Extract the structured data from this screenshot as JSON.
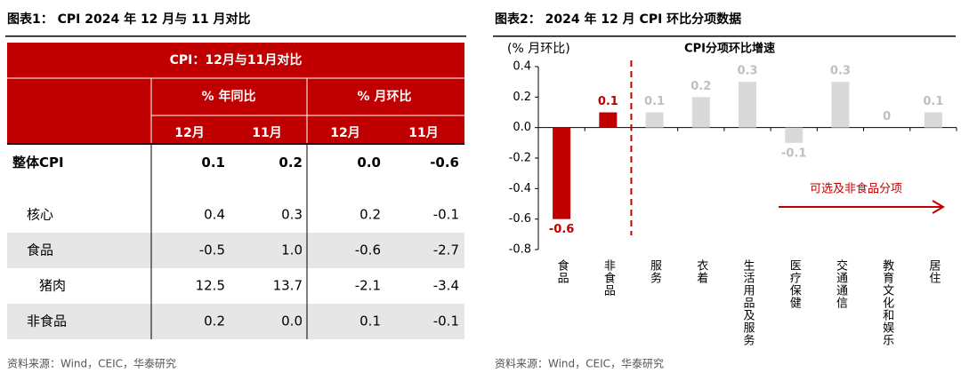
{
  "table": {
    "caption": "图表1：  CPI 2024 年 12 月与 11 月对比",
    "title": "CPI：12月与11月对比",
    "groups": [
      "% 年同比",
      "% 月环比"
    ],
    "columns": [
      "12月",
      "11月",
      "12月",
      "11月"
    ],
    "rows": [
      [
        "整体CPI",
        "0.1",
        "0.2",
        "0.0",
        "-0.6"
      ],
      [
        "核心",
        "0.4",
        "0.3",
        "0.2",
        "-0.1"
      ],
      [
        "食品",
        "-0.5",
        "1.0",
        "-0.6",
        "-2.7"
      ],
      [
        "猪肉",
        "12.5",
        "13.7",
        "-2.1",
        "-3.4"
      ],
      [
        "非食品",
        "0.2",
        "0.0",
        "0.1",
        "-0.1"
      ]
    ],
    "source": "资料来源：Wind，CEIC，华泰研究"
  },
  "chart_data": {
    "type": "bar",
    "caption": "图表2：   2024 年 12 月 CPI 环比分项数据",
    "title": "CPI分项环比增速",
    "ylabel": "(% 月环比)",
    "categories": [
      "食品",
      "非食品",
      "服务",
      "衣着",
      "生活用品及服务",
      "医疗保健",
      "交通通信",
      "教育文化和娱乐",
      "居住"
    ],
    "values": [
      -0.6,
      0.1,
      0.1,
      0.2,
      0.3,
      -0.1,
      0.3,
      0,
      0.1
    ],
    "colors": [
      "#c00000",
      "#c00000",
      "#d9d9d9",
      "#d9d9d9",
      "#d9d9d9",
      "#d9d9d9",
      "#d9d9d9",
      "#d9d9d9",
      "#d9d9d9"
    ],
    "label_colors": [
      "#c00000",
      "#c00000",
      "#bfbfbf",
      "#bfbfbf",
      "#bfbfbf",
      "#bfbfbf",
      "#bfbfbf",
      "#bfbfbf",
      "#bfbfbf"
    ],
    "ylim": [
      -0.8,
      0.4
    ],
    "yticks": [
      -0.8,
      -0.6,
      -0.4,
      -0.2,
      {
        "value": 0,
        "label": "0.0"
      },
      0.2,
      0.4
    ],
    "annotation": "可选及非食品分项",
    "source": "资料来源：Wind，CEIC，华泰研究"
  }
}
